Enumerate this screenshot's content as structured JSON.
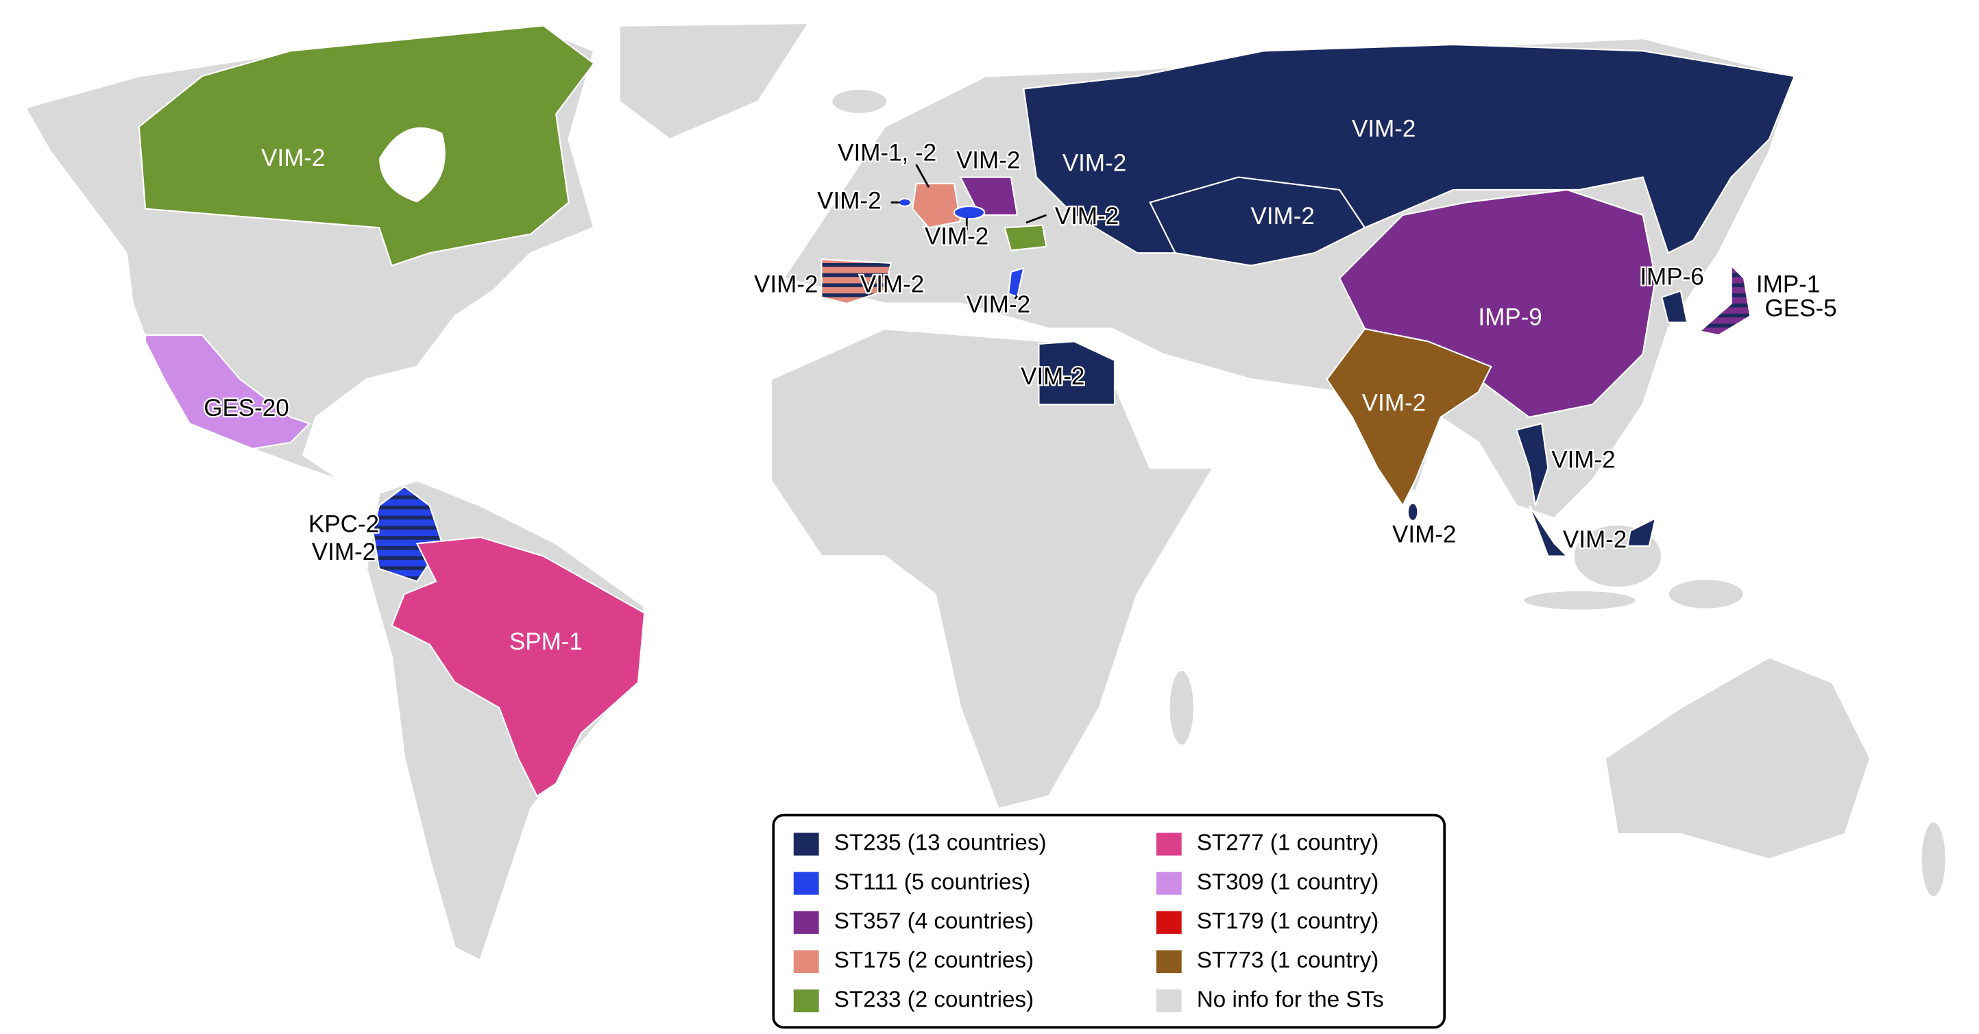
{
  "map": {
    "labels": [
      "VIM-2",
      "GES-20",
      "KPC-2",
      "VIM-2",
      "SPM-1",
      "VIM-1, -2",
      "VIM-2",
      "VIM-2",
      "VIM-2",
      "VIM-2",
      "VIM-2",
      "VIM-2",
      "VIM-2",
      "VIM-2",
      "VIM-2",
      "VIM-2",
      "VIM-2",
      "IMP-9",
      "VIM-2",
      "VIM-2",
      "IMP-6",
      "IMP-1",
      "GES-5",
      "VIM-2",
      "VIM-2"
    ],
    "legend": [
      {
        "label": "ST235 (13 countries)",
        "color": "#1b2a5e"
      },
      {
        "label": "ST111 (5 countries)",
        "color": "#2442e8"
      },
      {
        "label": "ST357 (4 countries)",
        "color": "#7b2d8e"
      },
      {
        "label": "ST175 (2 countries)",
        "color": "#e38a7b"
      },
      {
        "label": "ST233 (2 countries)",
        "color": "#6e9632"
      },
      {
        "label": "ST277 (1 country)",
        "color": "#dc3f8a"
      },
      {
        "label": "ST309 (1 country)",
        "color": "#cc8ce8"
      },
      {
        "label": "ST179 (1 country)",
        "color": "#d40f0f"
      },
      {
        "label": "ST773 (1 country)",
        "color": "#8b5a1c"
      },
      {
        "label": "No info for the STs",
        "color": "#d9d9d9"
      }
    ]
  }
}
